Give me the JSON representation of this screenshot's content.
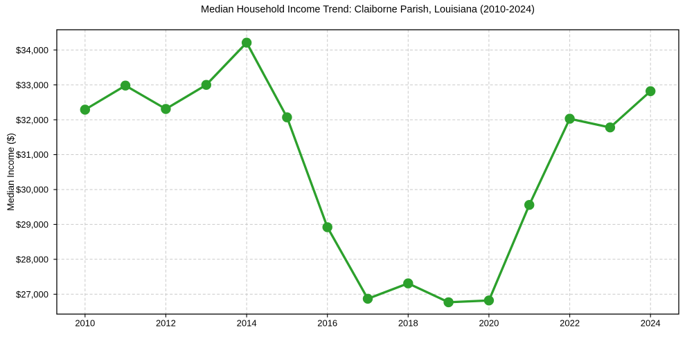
{
  "chart_data": {
    "type": "line",
    "title": "Median Household Income Trend: Claiborne Parish, Louisiana (2010-2024)",
    "xlabel": "",
    "ylabel": "Median Income ($)",
    "x": [
      2010,
      2011,
      2012,
      2013,
      2014,
      2015,
      2016,
      2017,
      2018,
      2019,
      2020,
      2021,
      2022,
      2023,
      2024
    ],
    "series": [
      {
        "name": "Median Household Income",
        "color": "#2ca02c",
        "values": [
          32290,
          32980,
          32310,
          33000,
          34210,
          32070,
          28920,
          26870,
          27310,
          26770,
          26820,
          29560,
          32030,
          31780,
          32820
        ]
      }
    ],
    "xlim": [
      2009.3,
      2024.7
    ],
    "ylim": [
      26430,
      34580
    ],
    "xticks": [
      2010,
      2012,
      2014,
      2016,
      2018,
      2020,
      2022,
      2024
    ],
    "xtick_labels": [
      "2010",
      "2012",
      "2014",
      "2016",
      "2018",
      "2020",
      "2022",
      "2024"
    ],
    "yticks": [
      27000,
      28000,
      29000,
      30000,
      31000,
      32000,
      33000,
      34000
    ],
    "ytick_labels": [
      "$27,000",
      "$28,000",
      "$29,000",
      "$30,000",
      "$31,000",
      "$32,000",
      "$33,000",
      "$34,000"
    ],
    "grid": true,
    "grid_style": "dashed",
    "legend_position": "none",
    "marker": "circle",
    "colors": {
      "line": "#2ca02c",
      "grid": "#c9c9c9",
      "spine": "#000000",
      "text": "#000000",
      "background": "#ffffff"
    }
  }
}
